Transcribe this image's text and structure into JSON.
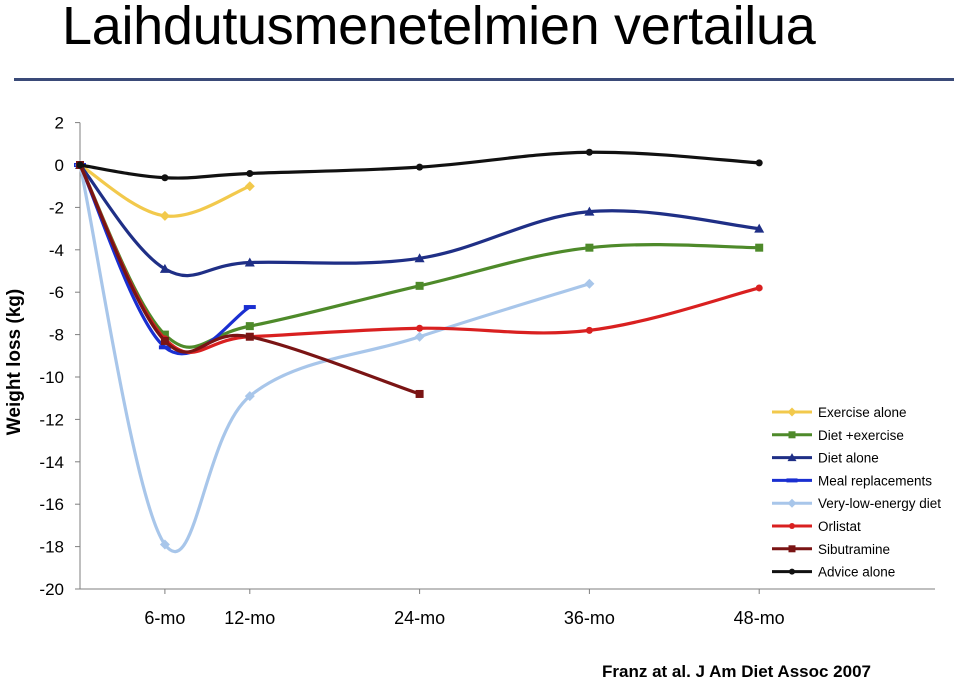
{
  "page": {
    "title": "Laihdutusmenetelmien vertailua",
    "source": "Franz at al. J Am Diet Assoc 2007"
  },
  "colors": {
    "title_rule": "#3a4a78",
    "exercise_alone": "#f2c94c",
    "diet_exercise": "#4e8a2a",
    "diet_alone": "#1f2f86",
    "meal_replacements": "#1a2fd1",
    "very_low_energy_diet": "#a8c6ea",
    "orlistat": "#d92020",
    "sibutramine": "#7a1414",
    "advice_alone": "#111111"
  },
  "chart_data": {
    "type": "line",
    "title": "",
    "xlabel": "",
    "ylabel": "Weight loss (kg)",
    "categories": [
      "6-mo",
      "12-mo",
      "24-mo",
      "36-mo",
      "48-mo"
    ],
    "x_ticks": [
      6,
      12,
      24,
      36,
      48
    ],
    "y_ticks": [
      2,
      0,
      -2,
      -4,
      -6,
      -8,
      -10,
      -12,
      -14,
      -16,
      -18,
      -20
    ],
    "ylim": [
      -20,
      2
    ],
    "grid": false,
    "legend_position": "bottom-right",
    "series": [
      {
        "name": "Exercise alone",
        "color": "#f2c94c",
        "marker": "diamond",
        "points": [
          [
            0,
            0
          ],
          [
            6,
            -2.4
          ],
          [
            12,
            -1.0
          ]
        ]
      },
      {
        "name": "Diet +exercise",
        "color": "#4e8a2a",
        "marker": "square",
        "points": [
          [
            0,
            0
          ],
          [
            6,
            -8.0
          ],
          [
            12,
            -7.6
          ],
          [
            24,
            -5.7
          ],
          [
            36,
            -3.9
          ],
          [
            48,
            -3.9
          ]
        ]
      },
      {
        "name": "Diet alone",
        "color": "#1f2f86",
        "marker": "triangle",
        "points": [
          [
            0,
            0
          ],
          [
            6,
            -4.9
          ],
          [
            12,
            -4.6
          ],
          [
            24,
            -4.4
          ],
          [
            36,
            -2.2
          ],
          [
            48,
            -3.0
          ]
        ]
      },
      {
        "name": "Meal replacements",
        "color": "#1a2fd1",
        "marker": "dash",
        "points": [
          [
            0,
            0
          ],
          [
            6,
            -8.6
          ],
          [
            12,
            -6.7
          ]
        ]
      },
      {
        "name": "Very-low-energy diet",
        "color": "#a8c6ea",
        "marker": "diamond",
        "points": [
          [
            0,
            0
          ],
          [
            6,
            -17.9
          ],
          [
            12,
            -10.9
          ],
          [
            24,
            -8.1
          ],
          [
            36,
            -5.6
          ]
        ]
      },
      {
        "name": "Orlistat",
        "color": "#d92020",
        "marker": "circle",
        "points": [
          [
            0,
            0
          ],
          [
            6,
            -8.2
          ],
          [
            12,
            -8.1
          ],
          [
            24,
            -7.7
          ],
          [
            36,
            -7.8
          ],
          [
            48,
            -5.8
          ]
        ]
      },
      {
        "name": "Sibutramine",
        "color": "#7a1414",
        "marker": "square",
        "points": [
          [
            0,
            0
          ],
          [
            6,
            -8.3
          ],
          [
            12,
            -8.1
          ],
          [
            24,
            -10.8
          ]
        ]
      },
      {
        "name": "Advice alone",
        "color": "#111111",
        "marker": "circle",
        "points": [
          [
            0,
            0
          ],
          [
            6,
            -0.6
          ],
          [
            12,
            -0.4
          ],
          [
            24,
            -0.1
          ],
          [
            36,
            0.6
          ],
          [
            48,
            0.1
          ]
        ]
      }
    ]
  }
}
